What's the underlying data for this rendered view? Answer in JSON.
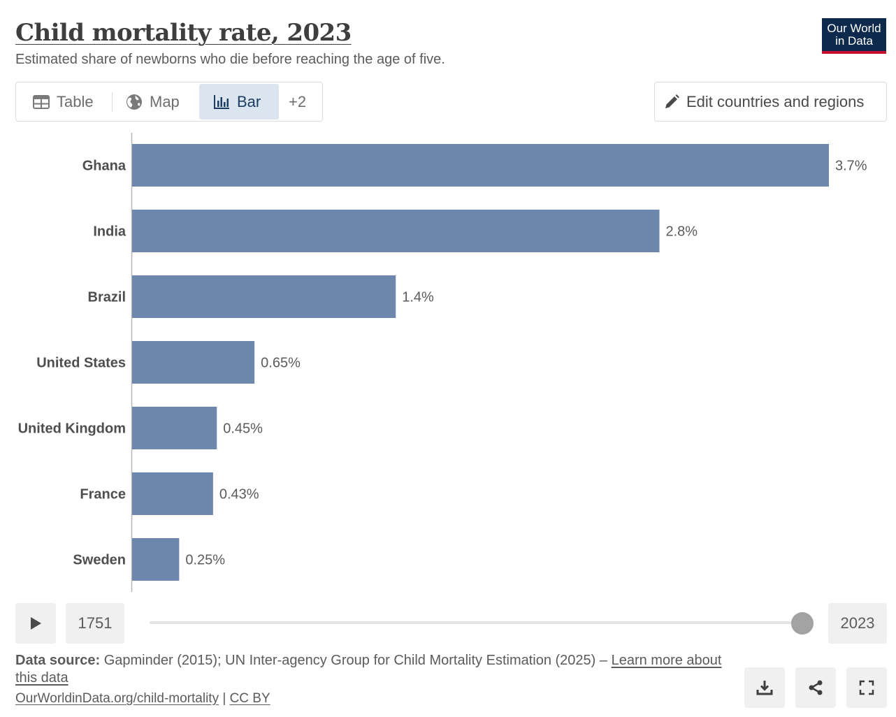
{
  "header": {
    "title": "Child mortality rate, 2023",
    "subtitle": "Estimated share of newborns who die before reaching the age of five.",
    "logo_line1": "Our World",
    "logo_line2": "in Data"
  },
  "tabs": [
    {
      "label": "Table",
      "icon": "table-icon"
    },
    {
      "label": "Map",
      "icon": "globe-icon"
    },
    {
      "label": "Bar",
      "icon": "bar-chart-icon",
      "active": true
    },
    {
      "label": "+2"
    }
  ],
  "edit_button": {
    "label": "Edit countries and regions",
    "icon": "pencil-icon"
  },
  "chart_data": {
    "type": "bar",
    "orientation": "horizontal",
    "categories": [
      "Ghana",
      "India",
      "Brazil",
      "United States",
      "United Kingdom",
      "France",
      "Sweden"
    ],
    "values": [
      3.7,
      2.8,
      1.4,
      0.65,
      0.45,
      0.43,
      0.25
    ],
    "value_labels": [
      "3.7%",
      "2.8%",
      "1.4%",
      "0.65%",
      "0.45%",
      "0.43%",
      "0.25%"
    ],
    "unit": "%",
    "bar_color": "#6d87ad"
  },
  "timeline": {
    "start_year": "1751",
    "end_year": "2023",
    "selected_year": "2023"
  },
  "footer": {
    "source_label": "Data source:",
    "source_text": " Gapminder (2015); UN Inter-agency Group for Child Mortality Estimation (2025) – ",
    "learn_more": "Learn more about this data",
    "url": "OurWorldinData.org/child-mortality",
    "separator": " | ",
    "license": "CC BY"
  },
  "colors": {
    "logo_bg": "#0d2a4d",
    "logo_accent": "#c8102e",
    "active_tab_bg": "#dbe5f0"
  }
}
